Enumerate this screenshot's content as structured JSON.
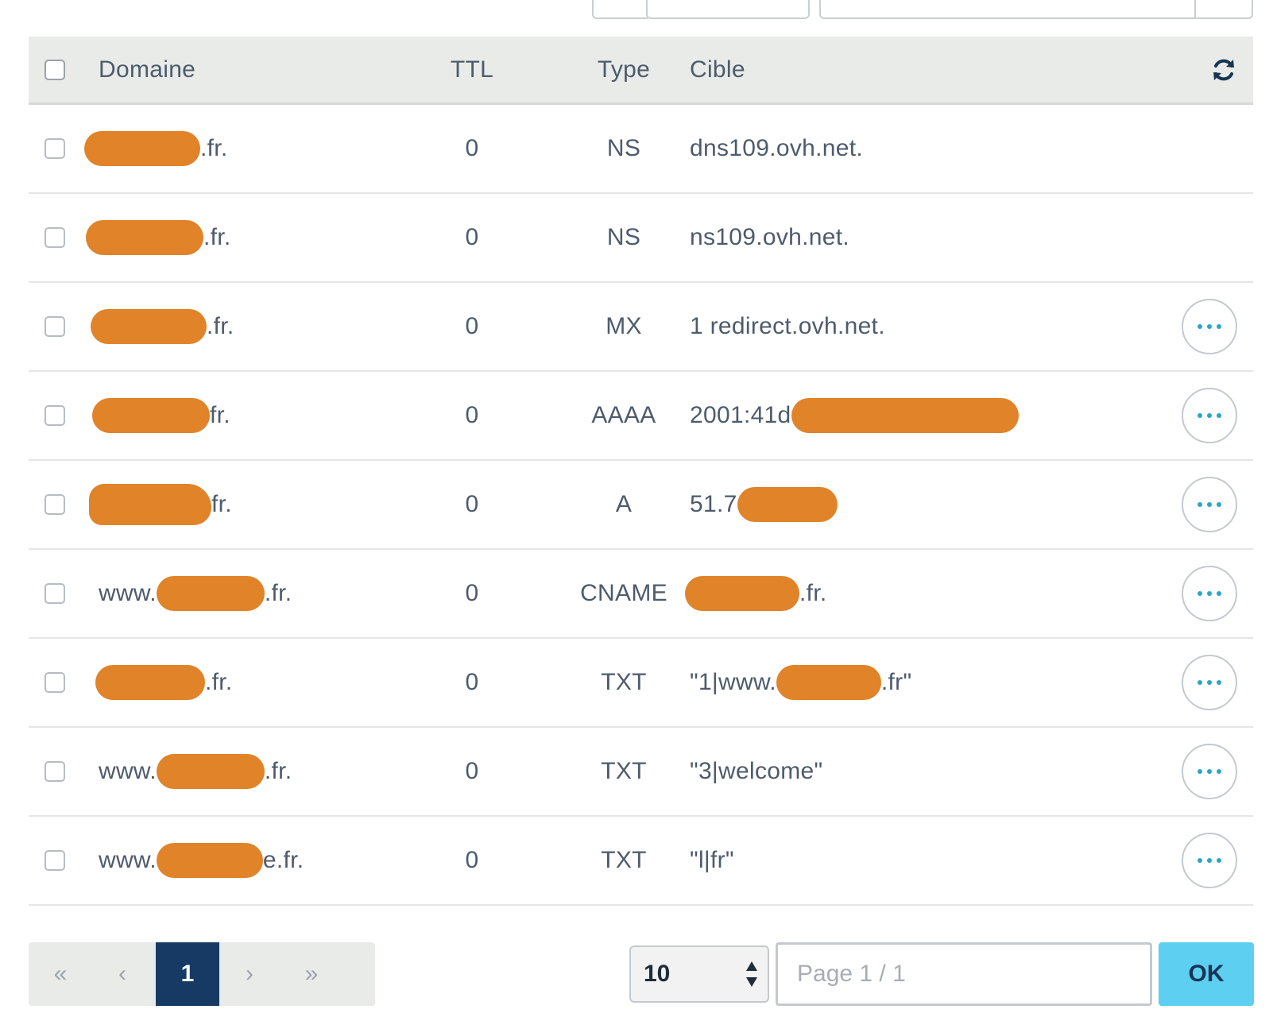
{
  "colors": {
    "redaction": "#e08329",
    "accent": "#2aa6c8",
    "header_bg": "#e9ebe8",
    "page_current": "#163a63",
    "ok_button": "#5dcff0"
  },
  "table": {
    "headers": {
      "domain": "Domaine",
      "ttl": "TTL",
      "type": "Type",
      "target": "Cible"
    },
    "refresh_icon": "refresh-icon",
    "rows": [
      {
        "domain_prefix": "",
        "domain_suffix": ".fr.",
        "ttl": "0",
        "type": "NS",
        "target_prefix": "dns109.ovh.net.",
        "target_suffix": "",
        "target_redacted": false,
        "has_actions": false
      },
      {
        "domain_prefix": "",
        "domain_suffix": ".fr.",
        "ttl": "0",
        "type": "NS",
        "target_prefix": "ns109.ovh.net.",
        "target_suffix": "",
        "target_redacted": false,
        "has_actions": false
      },
      {
        "domain_prefix": "",
        "domain_suffix": ".fr.",
        "ttl": "0",
        "type": "MX",
        "target_prefix": "1 redirect.ovh.net.",
        "target_suffix": "",
        "target_redacted": false,
        "has_actions": true
      },
      {
        "domain_prefix": "",
        "domain_suffix": "fr.",
        "ttl": "0",
        "type": "AAAA",
        "target_prefix": "2001:41d",
        "target_suffix": "",
        "target_redacted": true,
        "has_actions": true
      },
      {
        "domain_prefix": "",
        "domain_suffix": "fr.",
        "ttl": "0",
        "type": "A",
        "target_prefix": "51.7",
        "target_suffix": "",
        "target_redacted": true,
        "has_actions": true
      },
      {
        "domain_prefix": "www.",
        "domain_suffix": ".fr.",
        "ttl": "0",
        "type": "CNAME",
        "target_prefix": "",
        "target_suffix": ".fr.",
        "target_redacted": true,
        "has_actions": true
      },
      {
        "domain_prefix": "",
        "domain_suffix": ".fr.",
        "ttl": "0",
        "type": "TXT",
        "target_prefix": "\"1|www.",
        "target_suffix": ".fr\"",
        "target_redacted": true,
        "has_actions": true
      },
      {
        "domain_prefix": "www.",
        "domain_suffix": ".fr.",
        "ttl": "0",
        "type": "TXT",
        "target_prefix": "\"3|welcome\"",
        "target_suffix": "",
        "target_redacted": false,
        "has_actions": true
      },
      {
        "domain_prefix": "www.",
        "domain_suffix": "e.fr.",
        "ttl": "0",
        "type": "TXT",
        "target_prefix": "\"l|fr\"",
        "target_suffix": "",
        "target_redacted": false,
        "has_actions": true
      }
    ]
  },
  "pagination": {
    "first": "«",
    "prev": "‹",
    "current": "1",
    "next": "›",
    "last": "»",
    "per_page": "10",
    "page_placeholder": "Page 1 / 1",
    "ok_label": "OK"
  }
}
